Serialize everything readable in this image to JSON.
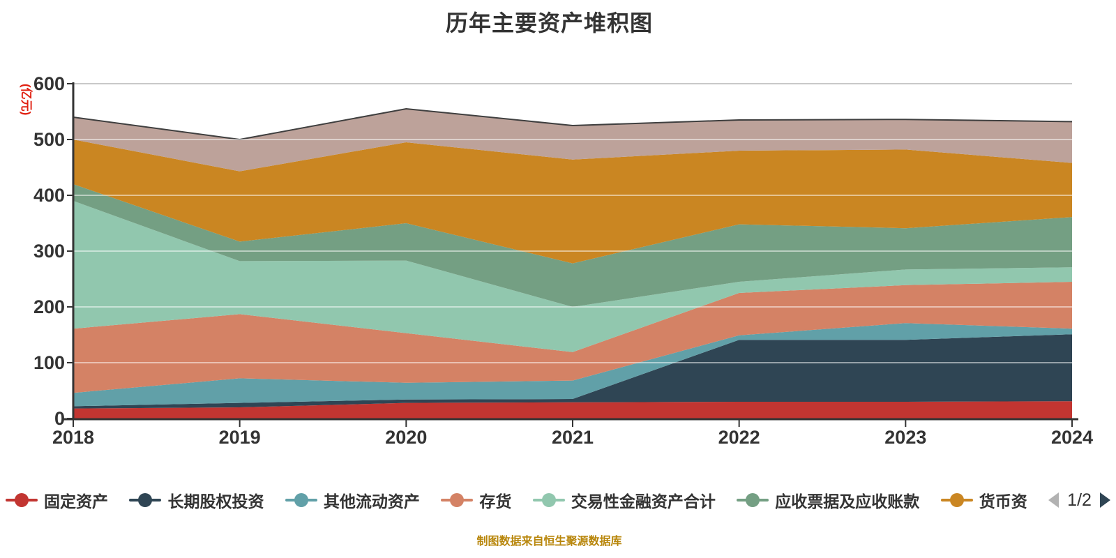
{
  "title": "历年主要资产堆积图",
  "source_note": "制图数据来自恒生聚源数据库",
  "legend": {
    "page_indicator": "1/2",
    "prev_arrow_color": "#b2b2b2",
    "next_arrow_color": "#2f4554",
    "visible_items": [
      "固定资产",
      "长期股权投资",
      "其他流动资产",
      "存货",
      "交易性金融资产合计",
      "应收票据及应收账款",
      "货币资"
    ]
  },
  "colors": {
    "background": "#ffffff",
    "title_text": "#333333",
    "axis": "#333333",
    "axis_label": "#333333",
    "unit_label": "#e01f10",
    "top_gridline": "#c9c9c9",
    "inner_gridline": "rgba(255,255,255,0.5)",
    "total_outline": "#3f3f3f",
    "source_text": "#b8860b"
  },
  "chart_data": {
    "type": "area",
    "stacked": true,
    "title": "历年主要资产堆积图",
    "x_categories": [
      "2018",
      "2019",
      "2020",
      "2021",
      "2022",
      "2023",
      "2024"
    ],
    "y_axis": {
      "min": 0,
      "max": 600,
      "interval": 100,
      "unit_label": "(亿元)"
    },
    "legend_position": "bottom",
    "grid": true,
    "series": [
      {
        "name": "固定资产",
        "color": "#c23531",
        "values": [
          18,
          20,
          28,
          29,
          30,
          30,
          31
        ]
      },
      {
        "name": "长期股权投资",
        "color": "#2f4554",
        "values": [
          4,
          8,
          6,
          6,
          111,
          111,
          120
        ]
      },
      {
        "name": "其他流动资产",
        "color": "#61a0a8",
        "values": [
          24,
          44,
          30,
          33,
          8,
          30,
          10
        ]
      },
      {
        "name": "存货",
        "color": "#d48265",
        "values": [
          115,
          115,
          89,
          51,
          76,
          68,
          84
        ]
      },
      {
        "name": "交易性金融资产合计",
        "color": "#91c7ae",
        "values": [
          229,
          95,
          130,
          81,
          20,
          28,
          26
        ]
      },
      {
        "name": "应收票据及应收账款",
        "color": "#749f83",
        "values": [
          30,
          35,
          67,
          78,
          103,
          74,
          90
        ]
      },
      {
        "name": "货币资",
        "color": "#ca8622",
        "values": [
          80,
          126,
          145,
          186,
          132,
          141,
          97
        ]
      },
      {
        "name": "",
        "color": "#bda29a",
        "values": [
          40,
          57,
          60,
          61,
          55,
          54,
          74
        ]
      }
    ]
  }
}
